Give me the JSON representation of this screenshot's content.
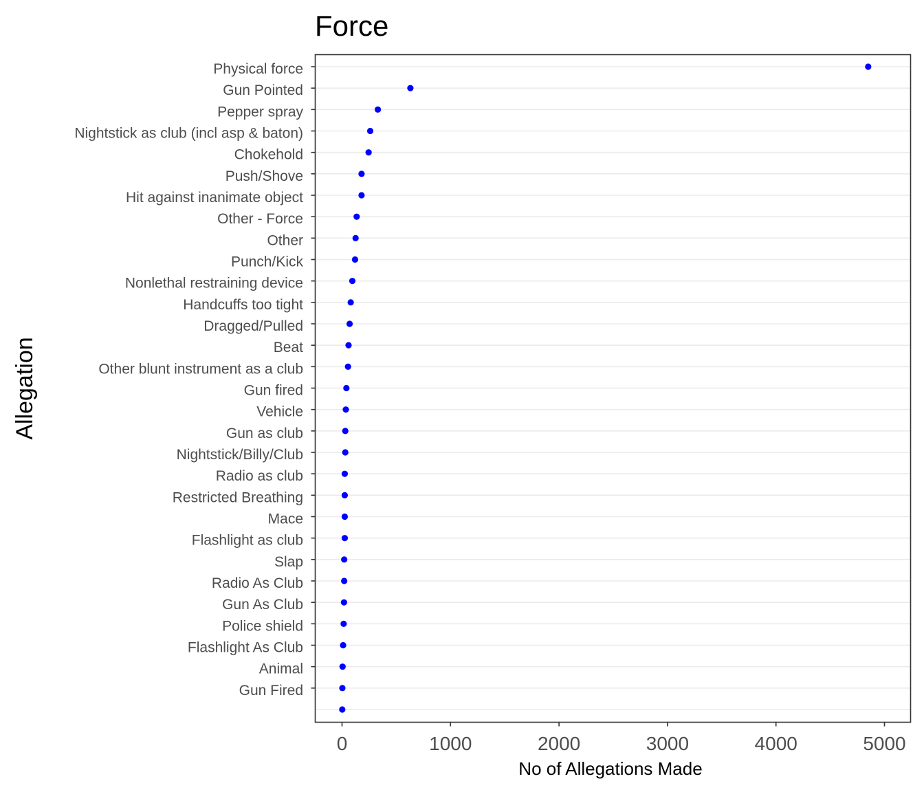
{
  "chart_data": {
    "type": "scatter",
    "title": "Force",
    "xlabel": "No of Allegations Made",
    "ylabel": "Allegation",
    "xlim": [
      -250,
      5240
    ],
    "xticks": [
      0,
      1000,
      2000,
      3000,
      4000,
      5000
    ],
    "grid": "horizontal",
    "legend": "none",
    "point_color": "#0000ff",
    "categories": [
      "Physical force",
      "Gun Pointed",
      "Pepper spray",
      "Nightstick as club (incl asp & baton)",
      "Chokehold",
      "Push/Shove",
      "Hit against inanimate object",
      "Other - Force",
      "Other",
      "Punch/Kick",
      "Nonlethal restraining device",
      "Handcuffs too tight",
      "Dragged/Pulled",
      "Beat",
      "Other blunt instrument as a club",
      "Gun fired",
      "Vehicle",
      "Gun as club",
      "Nightstick/Billy/Club",
      "Radio as club",
      "Restricted Breathing",
      "Mace",
      "Flashlight as club",
      "Slap",
      "Radio As Club",
      "Gun As Club",
      "Police shield",
      "Flashlight As Club",
      "Animal",
      "Gun Fired",
      ""
    ],
    "values": [
      4850,
      630,
      330,
      260,
      245,
      180,
      180,
      135,
      125,
      120,
      95,
      80,
      70,
      60,
      55,
      40,
      35,
      30,
      30,
      25,
      25,
      25,
      25,
      20,
      20,
      18,
      15,
      10,
      5,
      3,
      2
    ]
  }
}
